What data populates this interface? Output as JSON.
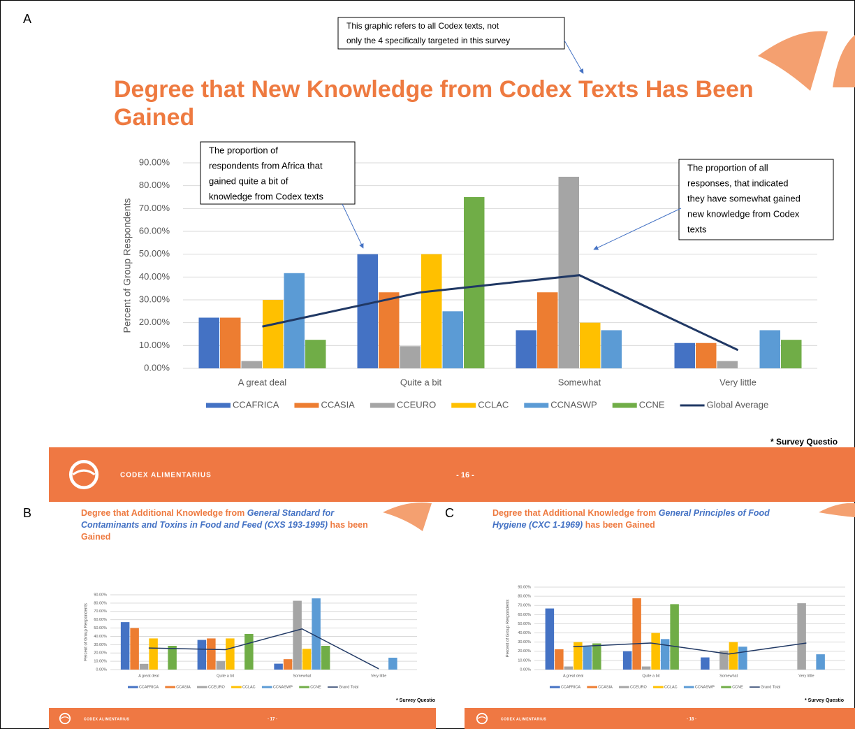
{
  "chart_data": [
    {
      "type": "bar",
      "panel": "A",
      "title": [
        [
          {
            "text": "Degree that New Knowledge from Codex Texts Has Been",
            "italic": false
          }
        ],
        [
          {
            "text": "Gained",
            "italic": false
          }
        ]
      ],
      "title_color": "#EE7A40",
      "emphasis_color": "#4472C4",
      "y_label": "Percent of Group Respondents",
      "categories": [
        "A great deal",
        "Quite a bit",
        "Somewhat",
        "Very little"
      ],
      "ylim": [
        0,
        90
      ],
      "yticks": [
        {
          "value": 0,
          "label": "0.00%"
        },
        {
          "value": 10,
          "label": "10.00%"
        },
        {
          "value": 20,
          "label": "20.00%"
        },
        {
          "value": 30,
          "label": "30.00%"
        },
        {
          "value": 40,
          "label": "40.00%"
        },
        {
          "value": 50,
          "label": "50.00%"
        },
        {
          "value": 60,
          "label": "60.00%"
        },
        {
          "value": 70,
          "label": "70.00%"
        },
        {
          "value": 80,
          "label": "80.00%"
        },
        {
          "value": 90,
          "label": "90.00%"
        }
      ],
      "grid": true,
      "series": [
        {
          "name": "CCAFRICA",
          "color": "#4472C4",
          "values": [
            22.2,
            50,
            16.7,
            11.1
          ]
        },
        {
          "name": "CCASIA",
          "color": "#ED7D31",
          "values": [
            22.2,
            33.3,
            33.3,
            11.1
          ]
        },
        {
          "name": "CCEURO",
          "color": "#A5A5A5",
          "values": [
            3.2,
            9.7,
            83.9,
            3.2
          ]
        },
        {
          "name": "CCLAC",
          "color": "#FFC000",
          "values": [
            30,
            50,
            20,
            0
          ]
        },
        {
          "name": "CCNASWP",
          "color": "#5B9BD5",
          "values": [
            41.7,
            25,
            16.7,
            16.7
          ]
        },
        {
          "name": "CCNE",
          "color": "#70AD47",
          "values": [
            12.5,
            75,
            0,
            12.5
          ]
        },
        {
          "name": "Global Average",
          "color": "#203864",
          "type": "line",
          "values": [
            18.3,
            33.3,
            40.8,
            8
          ]
        }
      ],
      "annotations": [
        [
          "This graphic refers to all Codex texts, not",
          "only the 4 specifically targeted in this survey"
        ],
        [
          "The proportion of",
          "respondents from Africa that",
          "gained quite a bit of",
          "knowledge from Codex texts"
        ],
        [
          "The proportion of all",
          "responses, that indicated",
          "they have somewhat gained",
          "new knowledge from Codex",
          "texts"
        ]
      ],
      "footnote": "* Survey Questio",
      "brand": "CODEX ALIMENTARIUS",
      "page_number": "- 16 -"
    },
    {
      "type": "bar",
      "panel": "B",
      "title": [
        [
          {
            "text": "Degree that Additional Knowledge from ",
            "italic": false
          },
          {
            "text": "General Standard for",
            "italic": true
          }
        ],
        [
          {
            "text": "Contaminants and Toxins in Food and Feed (CXS 193-1995)",
            "italic": true
          },
          {
            "text": " has been",
            "italic": false
          }
        ],
        [
          {
            "text": "Gained",
            "italic": false
          }
        ]
      ],
      "title_color": "#EE7A40",
      "emphasis_color": "#4472C4",
      "y_label": "Percent of Group Respondents",
      "categories": [
        "A great deal",
        "Quite a bit",
        "Somewhat",
        "Very little"
      ],
      "ylim": [
        0,
        90
      ],
      "yticks": [
        {
          "value": 0,
          "label": "0.00%"
        },
        {
          "value": 10,
          "label": "10.00%"
        },
        {
          "value": 20,
          "label": "20.00%"
        },
        {
          "value": 30,
          "label": "30.00%"
        },
        {
          "value": 40,
          "label": "40.00%"
        },
        {
          "value": 50,
          "label": "50.00%"
        },
        {
          "value": 60,
          "label": "60.00%"
        },
        {
          "value": 70,
          "label": "70.00%"
        },
        {
          "value": 80,
          "label": "80.00%"
        },
        {
          "value": 90,
          "label": "90.00%"
        }
      ],
      "grid": true,
      "series": [
        {
          "name": "CCAFRICA",
          "color": "#4472C4",
          "values": [
            57.1,
            35.7,
            7.1,
            0
          ]
        },
        {
          "name": "CCASIA",
          "color": "#ED7D31",
          "values": [
            50,
            37.5,
            12.5,
            0
          ]
        },
        {
          "name": "CCEURO",
          "color": "#A5A5A5",
          "values": [
            6.9,
            10.3,
            82.8,
            0
          ]
        },
        {
          "name": "CCLAC",
          "color": "#FFC000",
          "values": [
            37.5,
            37.5,
            25,
            0
          ]
        },
        {
          "name": "CCNASWP",
          "color": "#5B9BD5",
          "values": [
            0,
            0,
            85.7,
            14.3
          ]
        },
        {
          "name": "CCNE",
          "color": "#70AD47",
          "values": [
            28.6,
            42.9,
            28.6,
            0
          ]
        },
        {
          "name": "Grand Total",
          "color": "#203864",
          "type": "line",
          "values": [
            26,
            24,
            49,
            1
          ]
        }
      ],
      "footnote": "* Survey Questio",
      "brand": "CODEX ALIMENTARIUS",
      "page_number": "- 17 -"
    },
    {
      "type": "bar",
      "panel": "C",
      "title": [
        [
          {
            "text": "Degree that Additional Knowledge from ",
            "italic": false
          },
          {
            "text": "General Principles of Food",
            "italic": true
          }
        ],
        [
          {
            "text": "Hygiene (CXC 1-1969)",
            "italic": true
          },
          {
            "text": " has been Gained",
            "italic": false
          }
        ]
      ],
      "title_color": "#EE7A40",
      "emphasis_color": "#4472C4",
      "y_label": "Percent of Group Respondents",
      "categories": [
        "A great deal",
        "Quite a bit",
        "Somewhat",
        "Very little"
      ],
      "ylim": [
        0,
        90
      ],
      "yticks": [
        {
          "value": 0,
          "label": "0.00%"
        },
        {
          "value": 10,
          "label": "10.00%"
        },
        {
          "value": 20,
          "label": "20.00%"
        },
        {
          "value": 30,
          "label": "30.00%"
        },
        {
          "value": 40,
          "label": "40.00%"
        },
        {
          "value": 50,
          "label": "50.00%"
        },
        {
          "value": 60,
          "label": "60.00%"
        },
        {
          "value": 70,
          "label": "70.00%"
        },
        {
          "value": 80,
          "label": "80.00%"
        },
        {
          "value": 90,
          "label": "90.00%"
        }
      ],
      "grid": true,
      "series": [
        {
          "name": "CCAFRICA",
          "color": "#4472C4",
          "values": [
            66.7,
            20,
            13.3,
            0
          ]
        },
        {
          "name": "CCASIA",
          "color": "#ED7D31",
          "values": [
            22.2,
            77.8,
            0,
            0
          ]
        },
        {
          "name": "CCEURO",
          "color": "#A5A5A5",
          "values": [
            3.4,
            3.4,
            20.7,
            72.4
          ]
        },
        {
          "name": "CCLAC",
          "color": "#FFC000",
          "values": [
            30,
            40,
            30,
            0
          ]
        },
        {
          "name": "CCNASWP",
          "color": "#5B9BD5",
          "values": [
            25,
            33.3,
            25,
            16.7
          ]
        },
        {
          "name": "CCNE",
          "color": "#70AD47",
          "values": [
            28.6,
            71.4,
            0,
            0
          ]
        },
        {
          "name": "Grand Total",
          "color": "#203864",
          "type": "line",
          "values": [
            25,
            29,
            17,
            29
          ]
        }
      ],
      "footnote": "* Survey Questio",
      "brand": "CODEX ALIMENTARIUS",
      "page_number": "- 18 -"
    }
  ]
}
